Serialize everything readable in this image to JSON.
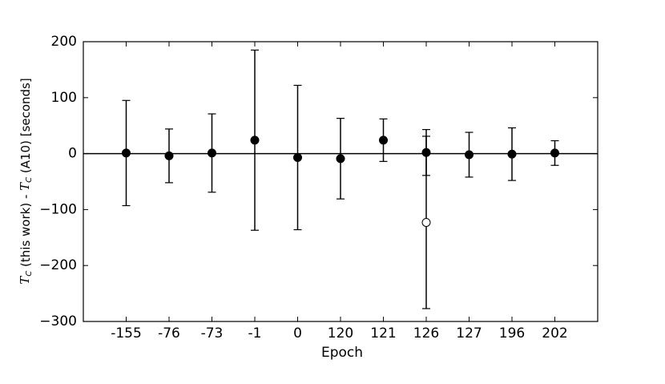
{
  "chart_data": {
    "type": "errorbar",
    "xlabel": "Epoch",
    "ylabel": [
      "T",
      "C",
      " (this work) - ",
      "T",
      "C",
      " (A10) [seconds]"
    ],
    "categories": [
      "-155",
      "-76",
      "-73",
      "-1",
      "0",
      "120",
      "121",
      "126",
      "127",
      "196",
      "202"
    ],
    "series": [
      {
        "color": "#000000",
        "marker": "filled",
        "values": [
          1,
          -4,
          1,
          24,
          -7,
          -9,
          24,
          2,
          -2,
          -1,
          1
        ],
        "errors": [
          94,
          48,
          70,
          161,
          129,
          72,
          38,
          41,
          40,
          47,
          22
        ]
      },
      {
        "color": "#000000",
        "marker": "open",
        "values": [
          null,
          null,
          null,
          null,
          null,
          null,
          null,
          -123,
          null,
          null,
          null
        ],
        "errors": [
          null,
          null,
          null,
          null,
          null,
          null,
          null,
          154,
          null,
          null,
          null
        ]
      }
    ],
    "ylim": [
      -300,
      200
    ],
    "yticks": [
      {
        "value": -300,
        "label": "−300"
      },
      {
        "value": -200,
        "label": "−200"
      },
      {
        "value": -100,
        "label": "−100"
      },
      0,
      100,
      200
    ],
    "hline": 0,
    "grid": false
  }
}
